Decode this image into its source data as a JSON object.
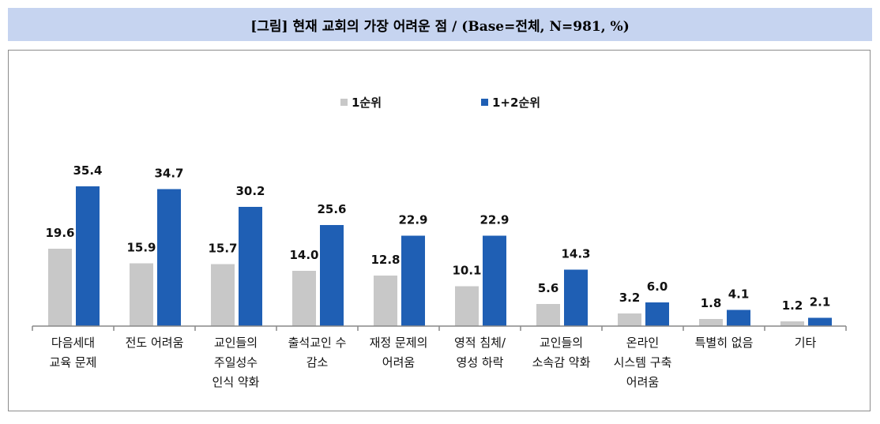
{
  "title": "[그림] 현재 교회의 가장 어려운 점 / (Base=전체, N=981, %)",
  "colors": {
    "series1": "#c8c8c8",
    "series2": "#1f5fb4",
    "title_bg": "#c6d4f0"
  },
  "chart_data": {
    "type": "bar",
    "categories": [
      [
        "다음세대",
        "교육 문제"
      ],
      [
        "전도 어려움"
      ],
      [
        "교인들의",
        "주일성수",
        "인식 약화"
      ],
      [
        "출석교인 수",
        "감소"
      ],
      [
        "재정 문제의",
        "어려움"
      ],
      [
        "영적 침체/",
        "영성 하락"
      ],
      [
        "교인들의",
        "소속감 약화"
      ],
      [
        "온라인",
        "시스템 구축",
        "어려움"
      ],
      [
        "특별히 없음"
      ],
      [
        "기타"
      ]
    ],
    "series": [
      {
        "name": "1순위",
        "values": [
          19.6,
          15.9,
          15.7,
          14.0,
          12.8,
          10.1,
          5.6,
          3.2,
          1.8,
          1.2
        ],
        "labels": [
          "19.6",
          "15.9",
          "15.7",
          "14.0",
          "12.8",
          "10.1",
          "5.6",
          "3.2",
          "1.8",
          "1.2"
        ]
      },
      {
        "name": "1+2순위",
        "values": [
          35.4,
          34.7,
          30.2,
          25.6,
          22.9,
          22.9,
          14.3,
          6.0,
          4.1,
          2.1
        ],
        "labels": [
          "35.4",
          "34.7",
          "30.2",
          "25.6",
          "22.9",
          "22.9",
          "14.3",
          "6.0",
          "4.1",
          "2.1"
        ]
      }
    ],
    "legend_position": "top-center",
    "grid": false,
    "ylim": [
      0,
      40
    ]
  }
}
